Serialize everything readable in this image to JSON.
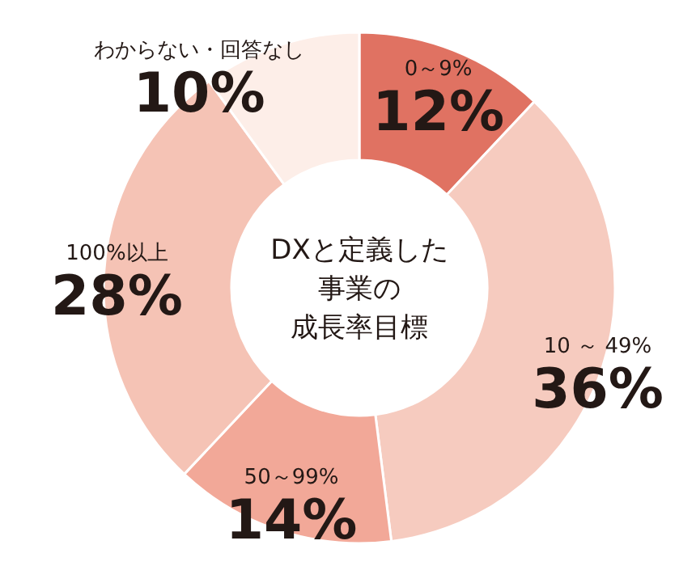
{
  "chart_data": {
    "type": "donut",
    "title": "DXと定義した事業の成長率目標",
    "categories": [
      "0～9%",
      "10 ～ 49%",
      "50～99%",
      "100%以上",
      "わからない・回答なし"
    ],
    "values": [
      12,
      36,
      14,
      28,
      10
    ],
    "colors": [
      "#e07262",
      "#f6cbbf",
      "#f2a898",
      "#f5c3b5",
      "#fdeee8"
    ],
    "value_labels": [
      "12%",
      "36%",
      "14%",
      "28%",
      "10%"
    ]
  }
}
